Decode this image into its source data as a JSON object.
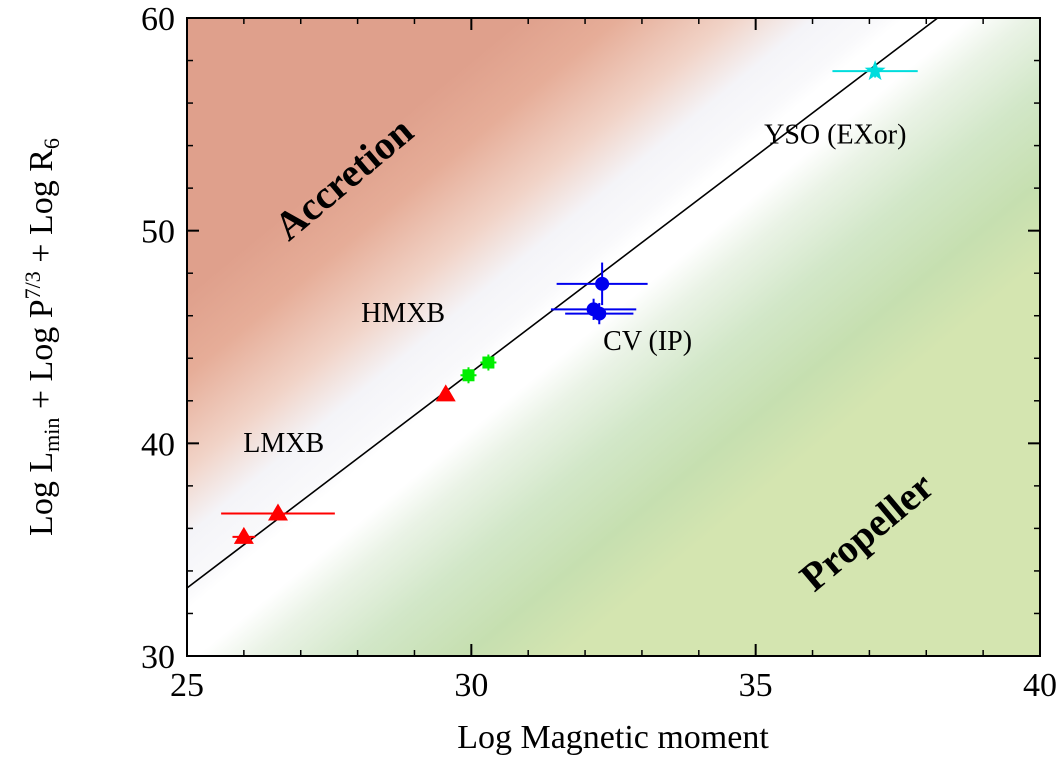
{
  "chart_data": {
    "type": "scatter",
    "title": "",
    "xlabel": "Log Magnetic moment",
    "ylabel": {
      "parts": [
        {
          "text": "Log L",
          "style": "normal"
        },
        {
          "text": "min",
          "style": "sub"
        },
        {
          "text": " + Log P",
          "style": "normal"
        },
        {
          "text": "7/3",
          "style": "sup"
        },
        {
          "text": " + Log R",
          "style": "normal"
        },
        {
          "text": "6",
          "style": "sub"
        }
      ]
    },
    "xlim": [
      25,
      40
    ],
    "ylim": [
      30,
      60
    ],
    "xticks": [
      25,
      30,
      35,
      40
    ],
    "yticks": [
      30,
      40,
      50,
      60
    ],
    "grid": false,
    "boundary_line": {
      "x": [
        25,
        38.2
      ],
      "y": [
        33.2,
        60
      ]
    },
    "regions": [
      {
        "name": "Accretion",
        "color": "#dfa08c",
        "rotation": -40,
        "x": 27.8,
        "y": 52.3
      },
      {
        "name": "Propeller",
        "color": "#c6dfb0",
        "rotation": -40,
        "x": 37.0,
        "y": 35.7
      }
    ],
    "class_labels": [
      {
        "text": "LMXB",
        "x": 26.7,
        "y": 39.6
      },
      {
        "text": "HMXB",
        "x": 28.8,
        "y": 45.7
      },
      {
        "text": "CV (IP)",
        "x": 33.1,
        "y": 44.4
      },
      {
        "text": "YSO (EXor)",
        "x": 36.4,
        "y": 54.1
      }
    ],
    "series": [
      {
        "name": "LMXB",
        "marker": "triangle",
        "color": "#ff0000",
        "points": [
          {
            "x": 26.0,
            "y": 35.6,
            "xerr": 0.2,
            "yerr": 0.0
          },
          {
            "x": 26.6,
            "y": 36.7,
            "xerr": 1.0,
            "yerr": 0.0
          },
          {
            "x": 29.55,
            "y": 42.3,
            "xerr": 0.0,
            "yerr": 0.0
          }
        ]
      },
      {
        "name": "HMXB",
        "marker": "square",
        "color": "#00ee00",
        "points": [
          {
            "x": 29.95,
            "y": 43.2,
            "xerr": 0.0,
            "yerr": 0.0
          },
          {
            "x": 30.3,
            "y": 43.8,
            "xerr": 0.0,
            "yerr": 0.0
          }
        ]
      },
      {
        "name": "CV (IP)",
        "marker": "circle",
        "color": "#0000ee",
        "points": [
          {
            "x": 32.15,
            "y": 46.3,
            "xerr": 0.75,
            "yerr": 0.5
          },
          {
            "x": 32.25,
            "y": 46.1,
            "xerr": 0.6,
            "yerr": 0.5
          },
          {
            "x": 32.3,
            "y": 47.5,
            "xerr": 0.8,
            "yerr": 1.0
          }
        ]
      },
      {
        "name": "YSO (EXor)",
        "marker": "star",
        "color": "#00dddd",
        "points": [
          {
            "x": 37.1,
            "y": 57.5,
            "xerr": 0.75,
            "yerr": 0.3
          }
        ]
      }
    ]
  }
}
